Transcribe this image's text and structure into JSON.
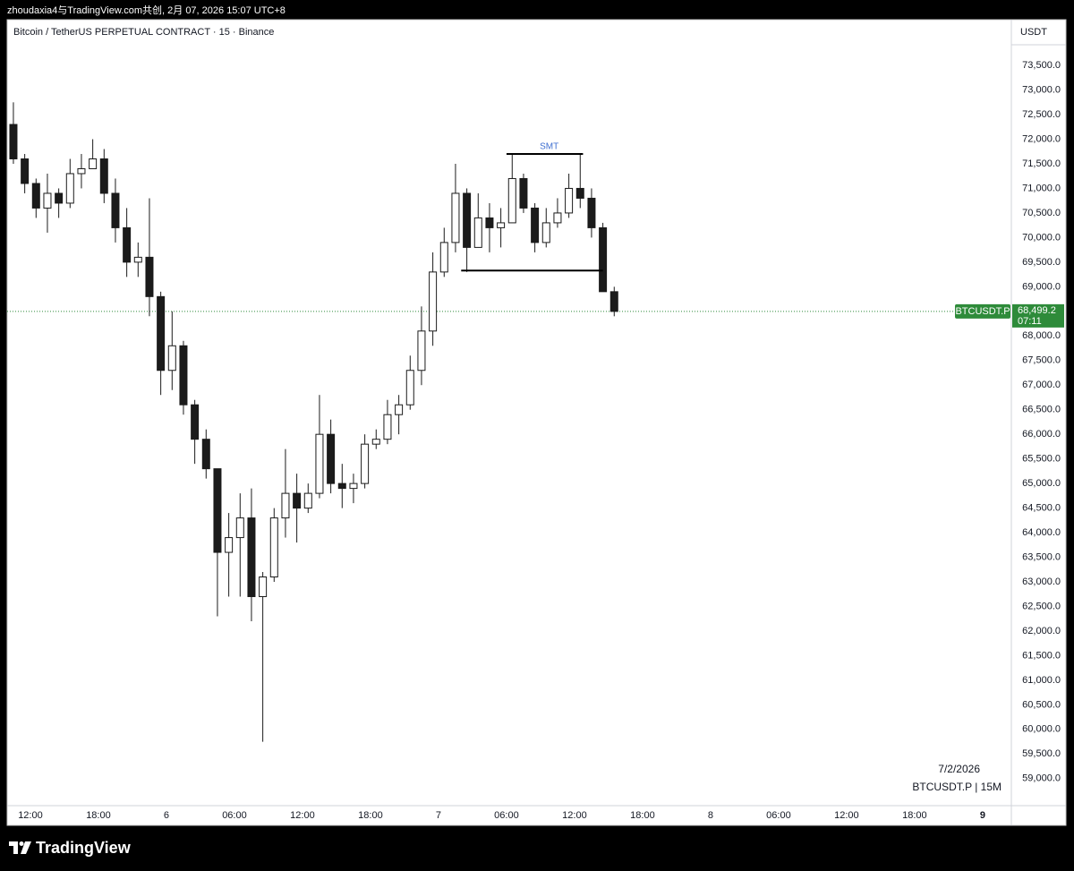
{
  "header": "zhoudaxia4与TradingView.com共创, 2月 07, 2026 15:07 UTC+8",
  "brand": "TradingView",
  "chart_data": {
    "type": "candlestick",
    "title": "Bitcoin / TetherUS PERPETUAL CONTRACT · 15 · Binance",
    "y_axis_label": "USDT",
    "watermark_date": "7/2/2026",
    "watermark_symbol": "BTCUSDT.P | 15M",
    "up_color": "#ffffff",
    "down_color": "#1b1b1b",
    "wick_color": "#1b1b1b",
    "grid": false,
    "xlim": [
      "2026-02-05T09:57",
      "2026-02-09T02:32"
    ],
    "ylim": [
      58450,
      74430
    ],
    "x": [
      "2026-02-05T10:00",
      "2026-02-05T11:00",
      "2026-02-05T12:00",
      "2026-02-05T13:00",
      "2026-02-05T14:00",
      "2026-02-05T15:00",
      "2026-02-05T16:00",
      "2026-02-05T17:00",
      "2026-02-05T18:00",
      "2026-02-05T19:00",
      "2026-02-05T20:00",
      "2026-02-05T21:00",
      "2026-02-05T22:00",
      "2026-02-05T23:00",
      "2026-02-06T00:00",
      "2026-02-06T01:00",
      "2026-02-06T02:00",
      "2026-02-06T03:00",
      "2026-02-06T04:00",
      "2026-02-06T05:00",
      "2026-02-06T06:00",
      "2026-02-06T07:00",
      "2026-02-06T08:00",
      "2026-02-06T09:00",
      "2026-02-06T10:00",
      "2026-02-06T11:00",
      "2026-02-06T12:00",
      "2026-02-06T13:00",
      "2026-02-06T14:00",
      "2026-02-06T15:00",
      "2026-02-06T16:00",
      "2026-02-06T17:00",
      "2026-02-06T18:00",
      "2026-02-06T19:00",
      "2026-02-06T20:00",
      "2026-02-06T21:00",
      "2026-02-06T22:00",
      "2026-02-06T23:00",
      "2026-02-07T00:00",
      "2026-02-07T01:00",
      "2026-02-07T02:00",
      "2026-02-07T03:00",
      "2026-02-07T04:00",
      "2026-02-07T05:00",
      "2026-02-07T06:00",
      "2026-02-07T07:00",
      "2026-02-07T08:00",
      "2026-02-07T09:00",
      "2026-02-07T10:00",
      "2026-02-07T11:00",
      "2026-02-07T12:00",
      "2026-02-07T13:00",
      "2026-02-07T14:00",
      "2026-02-07T15:00"
    ],
    "open": [
      72300,
      71600,
      71100,
      70600,
      70900,
      70700,
      71300,
      71400,
      71600,
      70900,
      70200,
      69500,
      69600,
      68800,
      67300,
      67800,
      66600,
      65900,
      65300,
      63600,
      63900,
      64300,
      62700,
      63100,
      64300,
      64800,
      64500,
      64800,
      66000,
      65000,
      64900,
      65000,
      65800,
      65900,
      66400,
      66600,
      67300,
      68100,
      69300,
      69900,
      70900,
      69800,
      70400,
      70200,
      70300,
      71200,
      70600,
      69900,
      70300,
      70500,
      71000,
      70800,
      70200,
      68900
    ],
    "high": [
      72750,
      71700,
      71200,
      71300,
      71000,
      71600,
      71700,
      72000,
      71800,
      71200,
      70600,
      69900,
      70800,
      68900,
      68500,
      67900,
      66700,
      66100,
      65300,
      64400,
      64800,
      64900,
      63200,
      64500,
      65700,
      65200,
      65000,
      66800,
      66300,
      65400,
      65200,
      66000,
      66100,
      66700,
      66800,
      67600,
      68600,
      69700,
      70200,
      71500,
      71000,
      70900,
      70700,
      70600,
      71700,
      71300,
      70700,
      70600,
      70800,
      71300,
      71700,
      71000,
      70300,
      69000
    ],
    "low": [
      71500,
      70900,
      70400,
      70100,
      70400,
      70600,
      71000,
      71400,
      70700,
      69900,
      69200,
      69200,
      68400,
      66800,
      66900,
      66400,
      65400,
      65100,
      62300,
      62700,
      62700,
      62200,
      59750,
      63000,
      63900,
      63800,
      64400,
      64700,
      64800,
      64500,
      64600,
      64900,
      65700,
      65800,
      66000,
      66500,
      67000,
      67800,
      69200,
      69700,
      69300,
      69800,
      69700,
      69800,
      70300,
      70500,
      69700,
      69800,
      70200,
      70400,
      70600,
      70000,
      68900,
      68400
    ],
    "close": [
      71600,
      71100,
      70600,
      70900,
      70700,
      71300,
      71400,
      71600,
      70900,
      70200,
      69500,
      69600,
      68800,
      67300,
      67800,
      66600,
      65900,
      65300,
      63600,
      63900,
      64300,
      62700,
      63100,
      64300,
      64800,
      64500,
      64800,
      66000,
      65000,
      64900,
      65000,
      65800,
      65900,
      66400,
      66600,
      67300,
      68100,
      69300,
      69900,
      70900,
      69800,
      70400,
      70200,
      70300,
      71200,
      70600,
      69900,
      70300,
      70500,
      71000,
      70800,
      70200,
      68900,
      68499.2
    ],
    "annotations": [
      {
        "label": "SMT",
        "value": 71700,
        "x": [
          "2026-02-07T06:00",
          "2026-02-07T12:45"
        ]
      },
      {
        "value": 69330,
        "x": [
          "2026-02-07T02:00",
          "2026-02-07T14:30"
        ]
      }
    ],
    "last_price": {
      "value": 68499.2,
      "label": "68,499.2",
      "symbol": "BTCUSDT.P",
      "countdown": "07:11",
      "color": "#2e8b3a"
    },
    "xticks": [
      {
        "value": "2026-02-05T12:00",
        "label": "12:00"
      },
      {
        "value": "2026-02-05T18:00",
        "label": "18:00"
      },
      {
        "value": "2026-02-06T00:00",
        "label": "6"
      },
      {
        "value": "2026-02-06T06:00",
        "label": "06:00"
      },
      {
        "value": "2026-02-06T12:00",
        "label": "12:00"
      },
      {
        "value": "2026-02-06T18:00",
        "label": "18:00"
      },
      {
        "value": "2026-02-07T00:00",
        "label": "7"
      },
      {
        "value": "2026-02-07T06:00",
        "label": "06:00"
      },
      {
        "value": "2026-02-07T12:00",
        "label": "12:00"
      },
      {
        "value": "2026-02-07T18:00",
        "label": "18:00"
      },
      {
        "value": "2026-02-08T00:00",
        "label": "8"
      },
      {
        "value": "2026-02-08T06:00",
        "label": "06:00"
      },
      {
        "value": "2026-02-08T12:00",
        "label": "12:00"
      },
      {
        "value": "2026-02-08T18:00",
        "label": "18:00"
      },
      {
        "value": "2026-02-09T00:00",
        "label": "9"
      }
    ],
    "yticks": [
      {
        "value": 59000,
        "label": "59,000.0"
      },
      {
        "value": 59500,
        "label": "59,500.0"
      },
      {
        "value": 60000,
        "label": "60,000.0"
      },
      {
        "value": 60500,
        "label": "60,500.0"
      },
      {
        "value": 61000,
        "label": "61,000.0"
      },
      {
        "value": 61500,
        "label": "61,500.0"
      },
      {
        "value": 62000,
        "label": "62,000.0"
      },
      {
        "value": 62500,
        "label": "62,500.0"
      },
      {
        "value": 63000,
        "label": "63,000.0"
      },
      {
        "value": 63500,
        "label": "63,500.0"
      },
      {
        "value": 64000,
        "label": "64,000.0"
      },
      {
        "value": 64500,
        "label": "64,500.0"
      },
      {
        "value": 65000,
        "label": "65,000.0"
      },
      {
        "value": 65500,
        "label": "65,500.0"
      },
      {
        "value": 66000,
        "label": "66,000.0"
      },
      {
        "value": 66500,
        "label": "66,500.0"
      },
      {
        "value": 67000,
        "label": "67,000.0"
      },
      {
        "value": 67500,
        "label": "67,500.0"
      },
      {
        "value": 68000,
        "label": "68,000.0"
      },
      {
        "value": 68500,
        "label": "68,500.0"
      },
      {
        "value": 69000,
        "label": "69,000.0"
      },
      {
        "value": 69500,
        "label": "69,500.0"
      },
      {
        "value": 70000,
        "label": "70,000.0"
      },
      {
        "value": 70500,
        "label": "70,500.0"
      },
      {
        "value": 71000,
        "label": "71,000.0"
      },
      {
        "value": 71500,
        "label": "71,500.0"
      },
      {
        "value": 72000,
        "label": "72,000.0"
      },
      {
        "value": 72500,
        "label": "72,500.0"
      },
      {
        "value": 73000,
        "label": "73,000.0"
      },
      {
        "value": 73500,
        "label": "73,500.0"
      }
    ]
  }
}
